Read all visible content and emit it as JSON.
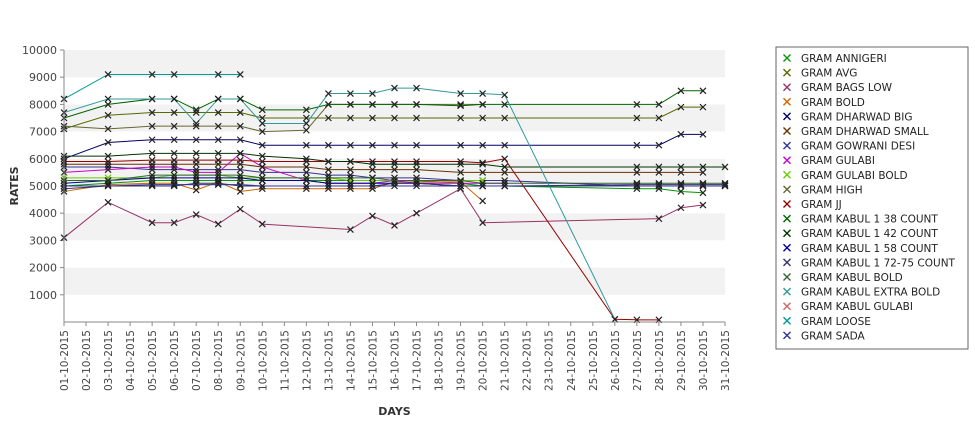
{
  "chart_data": {
    "type": "line",
    "title": "",
    "xlabel": "DAYS",
    "ylabel": "RATES",
    "ylim": [
      0,
      10000
    ],
    "y_ticks": [
      1000,
      2000,
      3000,
      4000,
      5000,
      6000,
      7000,
      8000,
      9000,
      10000
    ],
    "grid": "alternating horizontal bands",
    "legend_position": "right",
    "categories": [
      "01-10-2015",
      "02-10-2015",
      "03-10-2015",
      "04-10-2015",
      "05-10-2015",
      "06-10-2015",
      "07-10-2015",
      "08-10-2015",
      "09-10-2015",
      "10-10-2015",
      "11-10-2015",
      "12-10-2015",
      "13-10-2015",
      "14-10-2015",
      "15-10-2015",
      "16-10-2015",
      "17-10-2015",
      "18-10-2015",
      "19-10-2015",
      "20-10-2015",
      "21-10-2015",
      "22-10-2015",
      "23-10-2015",
      "24-10-2015",
      "25-10-2015",
      "26-10-2015",
      "27-10-2015",
      "28-10-2015",
      "29-10-2015",
      "30-10-2015",
      "31-10-2015"
    ],
    "series": [
      {
        "name": "GRAM ANNIGERI",
        "color": "#009900",
        "values": [
          5000,
          null,
          5100,
          null,
          5200,
          5200,
          5200,
          5200,
          5200,
          5200,
          null,
          5200,
          5200,
          5200,
          5200,
          5200,
          5200,
          null,
          5100,
          5000,
          5000,
          null,
          null,
          null,
          null,
          null,
          4900,
          4900,
          4800,
          4750,
          null
        ]
      },
      {
        "name": "GRAM AVG",
        "color": "#556b00",
        "values": [
          7100,
          null,
          7600,
          null,
          7700,
          7700,
          7700,
          7700,
          7700,
          7500,
          null,
          7500,
          7500,
          7500,
          7500,
          7500,
          7500,
          null,
          7500,
          7500,
          7500,
          null,
          null,
          null,
          null,
          null,
          7500,
          7500,
          7900,
          7900,
          null
        ]
      },
      {
        "name": "GRAM BAGS LOW",
        "color": "#993366",
        "values": [
          3100,
          null,
          4400,
          null,
          3650,
          3650,
          3950,
          3600,
          4150,
          3600,
          null,
          null,
          null,
          3400,
          3900,
          3550,
          4000,
          null,
          4900,
          3650,
          null,
          null,
          null,
          null,
          null,
          null,
          null,
          3800,
          4200,
          4300,
          null
        ]
      },
      {
        "name": "GRAM BOLD",
        "color": "#cc6600",
        "values": [
          4800,
          null,
          5050,
          null,
          5100,
          5100,
          4850,
          5150,
          4800,
          4900,
          null,
          4900,
          4900,
          4900,
          4900,
          5150,
          5150,
          null,
          5150,
          4450,
          null,
          null,
          null,
          null,
          null,
          null,
          null,
          null,
          null,
          null,
          null
        ]
      },
      {
        "name": "GRAM DHARWAD BIG",
        "color": "#000066",
        "values": [
          6000,
          null,
          6600,
          null,
          6700,
          6700,
          6700,
          6700,
          6700,
          6500,
          null,
          6500,
          6500,
          6500,
          6500,
          6500,
          6500,
          null,
          6500,
          6500,
          6500,
          null,
          null,
          null,
          null,
          null,
          6500,
          6500,
          6900,
          6900,
          null
        ]
      },
      {
        "name": "GRAM DHARWAD SMALL",
        "color": "#663300",
        "values": [
          5800,
          null,
          5800,
          null,
          5800,
          5800,
          5800,
          5800,
          5800,
          5700,
          null,
          5700,
          5600,
          5600,
          5600,
          5600,
          5600,
          null,
          5500,
          5500,
          5500,
          null,
          null,
          null,
          null,
          null,
          5500,
          5500,
          5500,
          5500,
          null
        ]
      },
      {
        "name": "GRAM GOWRANI DESI",
        "color": "#333399",
        "values": [
          5700,
          null,
          5700,
          null,
          5600,
          5600,
          5600,
          5600,
          5600,
          5500,
          null,
          5500,
          5400,
          5400,
          5300,
          5300,
          5300,
          null,
          5200,
          5200,
          5200,
          null,
          null,
          null,
          null,
          null,
          5000,
          5000,
          5000,
          5000,
          null
        ]
      },
      {
        "name": "GRAM GULABI",
        "color": "#cc00cc",
        "values": [
          5500,
          null,
          5600,
          null,
          5700,
          5700,
          5500,
          5500,
          6200,
          5700,
          null,
          5200,
          5100,
          5100,
          5100,
          5200,
          5100,
          null,
          5100,
          5100,
          5100,
          null,
          null,
          null,
          null,
          null,
          null,
          null,
          null,
          null,
          null
        ]
      },
      {
        "name": "GRAM GULABI BOLD",
        "color": "#66cc00",
        "values": [
          5300,
          null,
          5300,
          null,
          5300,
          5400,
          5400,
          5400,
          5300,
          5300,
          null,
          5300,
          5300,
          5200,
          5200,
          5200,
          5200,
          null,
          5200,
          5200,
          null,
          null,
          null,
          null,
          null,
          null,
          null,
          null,
          null,
          null,
          null
        ]
      },
      {
        "name": "GRAM HIGH",
        "color": "#666633",
        "values": [
          7200,
          null,
          7100,
          null,
          7200,
          7200,
          7200,
          7200,
          7200,
          7000,
          null,
          7050,
          8000,
          8000,
          8000,
          8000,
          8000,
          null,
          8000,
          8000,
          null,
          null,
          null,
          null,
          null,
          null,
          null,
          null,
          null,
          null,
          null
        ]
      },
      {
        "name": "GRAM JJ",
        "color": "#990000",
        "values": [
          5900,
          null,
          5900,
          null,
          5950,
          5950,
          5950,
          5950,
          5950,
          5900,
          null,
          5900,
          5900,
          5900,
          5900,
          5900,
          5900,
          null,
          5900,
          5850,
          6000,
          null,
          null,
          null,
          null,
          100,
          80,
          80,
          null,
          null,
          null
        ]
      },
      {
        "name": "GRAM KABUL 1 38 COUNT",
        "color": "#006600",
        "values": [
          7500,
          null,
          8000,
          null,
          8200,
          8200,
          7800,
          8200,
          8200,
          7800,
          null,
          7800,
          8000,
          8000,
          8000,
          8000,
          8000,
          null,
          7950,
          8000,
          8000,
          null,
          null,
          null,
          null,
          null,
          8000,
          8000,
          8500,
          8500,
          null
        ]
      },
      {
        "name": "GRAM KABUL 1 42 COUNT",
        "color": "#003300",
        "values": [
          6100,
          null,
          6100,
          null,
          6200,
          6200,
          6200,
          6200,
          6200,
          6100,
          null,
          6000,
          5900,
          5900,
          5800,
          5800,
          5800,
          null,
          5800,
          5800,
          5700,
          null,
          null,
          null,
          null,
          null,
          5700,
          5700,
          5700,
          5700,
          5700
        ]
      },
      {
        "name": "GRAM KABUL 1 58 COUNT",
        "color": "#000099",
        "values": [
          5100,
          null,
          5200,
          null,
          5300,
          5300,
          5300,
          5300,
          5300,
          5200,
          null,
          5200,
          5100,
          5100,
          5100,
          5100,
          5100,
          null,
          5000,
          5000,
          5000,
          null,
          null,
          null,
          null,
          null,
          5000,
          5000,
          5000,
          5000,
          5000
        ]
      },
      {
        "name": "GRAM KABUL 1 72-75 COUNT",
        "color": "#333366",
        "values": [
          4900,
          null,
          5000,
          null,
          5000,
          5000,
          5100,
          5100,
          5000,
          5000,
          null,
          5000,
          5000,
          5000,
          5000,
          5100,
          5100,
          null,
          5000,
          5000,
          5000,
          null,
          null,
          null,
          null,
          null,
          5050,
          5050,
          5050,
          5050,
          5050
        ]
      },
      {
        "name": "GRAM KABUL BOLD",
        "color": "#336633",
        "values": [
          5200,
          null,
          5200,
          null,
          5400,
          5400,
          5400,
          5400,
          5400,
          5300,
          null,
          5300,
          5300,
          5300,
          5300,
          5200,
          5200,
          null,
          5200,
          5100,
          5100,
          null,
          null,
          null,
          null,
          null,
          5100,
          5100,
          5100,
          5100,
          5100
        ]
      },
      {
        "name": "GRAM KABUL EXTRA BOLD",
        "color": "#339999",
        "values": [
          7700,
          null,
          8200,
          null,
          8200,
          8200,
          7300,
          8200,
          8200,
          7300,
          null,
          7300,
          8400,
          8400,
          8400,
          8600,
          8600,
          null,
          8400,
          8400,
          8350,
          null,
          null,
          null,
          null,
          100,
          null,
          null,
          null,
          null,
          null
        ]
      },
      {
        "name": "GRAM KABUL GULABI",
        "color": "#cc6666",
        "values": null
      },
      {
        "name": "GRAM LOOSE",
        "color": "#009999",
        "values": [
          8200,
          null,
          9100,
          null,
          9100,
          9100,
          null,
          9100,
          9100,
          null,
          null,
          null,
          null,
          null,
          null,
          null,
          null,
          null,
          null,
          null,
          null,
          null,
          null,
          null,
          null,
          null,
          null,
          null,
          null,
          null,
          null
        ]
      },
      {
        "name": "GRAM SADA",
        "color": "#333399",
        "values": [
          5000,
          null,
          5000,
          null,
          5050,
          5050,
          5050,
          5050,
          5050,
          5000,
          null,
          5000,
          5000,
          5000,
          5000,
          5000,
          5000,
          null,
          5000,
          5000,
          5000,
          null,
          null,
          null,
          null,
          null,
          5000,
          5000,
          5000,
          5000,
          5000
        ]
      }
    ]
  }
}
